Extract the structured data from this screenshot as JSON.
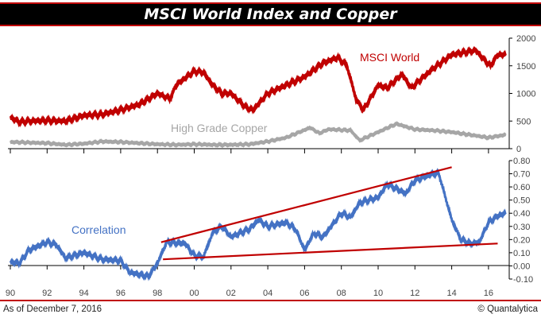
{
  "title": "MSCI World Index and Copper",
  "footer": {
    "left": "As of December 7, 2016",
    "right": "© Quantalytica"
  },
  "colors": {
    "msci": "#c00000",
    "copper": "#a6a6a6",
    "correlation": "#4472c4",
    "trend": "#c00000"
  },
  "chart_data": [
    {
      "type": "line",
      "title": "MSCI World Index and Copper",
      "ylim": [
        0,
        2000
      ],
      "yticks": [
        "0",
        "500",
        "1000",
        "1500",
        "2000"
      ],
      "series": [
        {
          "name": "MSCI World",
          "x": [
            1990,
            1990.5,
            1991,
            1992,
            1993,
            1994,
            1995,
            1996,
            1997,
            1998,
            1998.7,
            1999,
            2000,
            2000.5,
            2001,
            2001.5,
            2002,
            2002.8,
            2003.2,
            2004,
            2005,
            2006,
            2007,
            2007.8,
            2008.3,
            2008.8,
            2009.2,
            2010,
            2010.5,
            2011.3,
            2011.8,
            2012.3,
            2013,
            2014,
            2015.3,
            2015.8,
            2016.1,
            2016.5,
            2016.93
          ],
          "values": [
            570,
            480,
            500,
            510,
            500,
            600,
            620,
            700,
            800,
            1000,
            900,
            1150,
            1400,
            1380,
            1150,
            1000,
            1000,
            750,
            700,
            1000,
            1150,
            1300,
            1550,
            1650,
            1500,
            900,
            700,
            1150,
            1100,
            1350,
            1100,
            1250,
            1450,
            1700,
            1780,
            1600,
            1500,
            1700,
            1700
          ]
        },
        {
          "name": "High Grade Copper",
          "x": [
            1990,
            1992,
            1993,
            1994,
            1995,
            1996,
            1997,
            1998,
            1999,
            2000,
            2001,
            2002,
            2003,
            2004,
            2005,
            2006.3,
            2006.8,
            2007.3,
            2008.5,
            2009,
            2010,
            2011,
            2012,
            2013,
            2014,
            2015,
            2016,
            2016.93
          ],
          "values": [
            120,
            100,
            70,
            90,
            130,
            120,
            100,
            80,
            70,
            80,
            70,
            70,
            80,
            130,
            200,
            380,
            280,
            350,
            330,
            150,
            300,
            450,
            350,
            330,
            300,
            250,
            200,
            250
          ]
        }
      ]
    },
    {
      "type": "line",
      "ylim": [
        -0.1,
        0.8
      ],
      "yticks": [
        "-0.10",
        "0.00",
        "0.10",
        "0.20",
        "0.30",
        "0.40",
        "0.50",
        "0.60",
        "0.70",
        "0.80"
      ],
      "xticks": [
        "90",
        "92",
        "94",
        "96",
        "98",
        "00",
        "02",
        "04",
        "06",
        "08",
        "10",
        "12",
        "14",
        "16"
      ],
      "series": [
        {
          "name": "Correlation",
          "x": [
            1990,
            1990.5,
            1991,
            1992,
            1992.5,
            1993,
            1994,
            1995,
            1996,
            1996.5,
            1997.5,
            1998,
            1998.5,
            1999.5,
            2000,
            2000.5,
            2001,
            2001.5,
            2002,
            2003,
            2003.5,
            2004,
            2005,
            2005.5,
            2006,
            2006.5,
            2007,
            2008,
            2008.5,
            2009,
            2010,
            2010.5,
            2011.5,
            2012,
            2013,
            2013.3,
            2014,
            2014.5,
            2015,
            2015.5,
            2016,
            2016.5,
            2016.93
          ],
          "values": [
            0.03,
            0.02,
            0.12,
            0.18,
            0.16,
            0.06,
            0.1,
            0.05,
            0.04,
            -0.05,
            -0.08,
            0.02,
            0.18,
            0.17,
            0.08,
            0.07,
            0.25,
            0.3,
            0.22,
            0.28,
            0.35,
            0.3,
            0.33,
            0.28,
            0.12,
            0.25,
            0.22,
            0.4,
            0.37,
            0.48,
            0.52,
            0.62,
            0.55,
            0.65,
            0.7,
            0.7,
            0.35,
            0.2,
            0.17,
            0.18,
            0.33,
            0.38,
            0.4
          ]
        }
      ],
      "trendlines": [
        {
          "name": "upper",
          "x": [
            1998.2,
            2014
          ],
          "y": [
            0.18,
            0.75
          ]
        },
        {
          "name": "lower",
          "x": [
            1998.3,
            2016.5
          ],
          "y": [
            0.05,
            0.17
          ]
        }
      ]
    }
  ]
}
